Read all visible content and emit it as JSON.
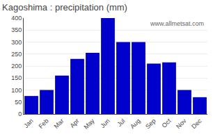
{
  "chart_data": {
    "type": "bar",
    "title": "Kagoshima : precipitation (mm)",
    "categories": [
      "Jan",
      "Feb",
      "Mar",
      "Apr",
      "May",
      "Jun",
      "Jul",
      "Aug",
      "Sep",
      "Oct",
      "Nov",
      "Dec"
    ],
    "values": [
      75,
      100,
      160,
      230,
      255,
      400,
      300,
      300,
      210,
      215,
      100,
      70
    ],
    "color": "#0000cc",
    "ylim": [
      0,
      400
    ],
    "yticks": [
      0,
      50,
      100,
      150,
      200,
      250,
      300,
      350,
      400
    ],
    "grid": true,
    "annotation": "www.allmetsat.com"
  }
}
